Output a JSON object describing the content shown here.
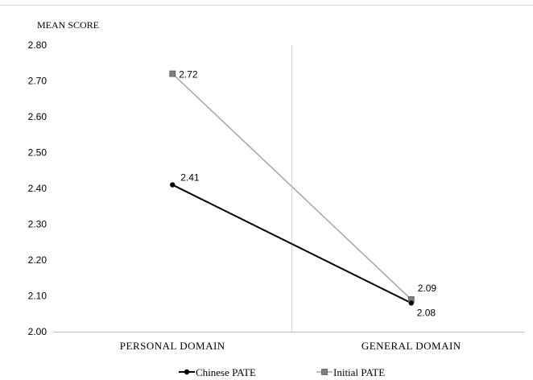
{
  "chart_data": {
    "type": "line",
    "title": "",
    "ylabel": "MEAN SCORE",
    "xlabel": "",
    "categories": [
      "PERSONAL DOMAIN",
      "GENERAL DOMAIN"
    ],
    "ylim": [
      2.0,
      2.8
    ],
    "yticks": [
      "2.00",
      "2.10",
      "2.20",
      "2.30",
      "2.40",
      "2.50",
      "2.60",
      "2.70",
      "2.80"
    ],
    "grid": false,
    "legend_position": "bottom",
    "series": [
      {
        "name": "Chinese PATE",
        "values": [
          2.41,
          2.08
        ],
        "labels": [
          "2.41",
          "2.08"
        ],
        "color": "#000000",
        "marker": "circle"
      },
      {
        "name": "Initial PATE",
        "values": [
          2.72,
          2.09
        ],
        "labels": [
          "2.72",
          "2.09"
        ],
        "color": "#a6a6a6",
        "marker_fill": "#808080",
        "marker": "square"
      }
    ]
  }
}
